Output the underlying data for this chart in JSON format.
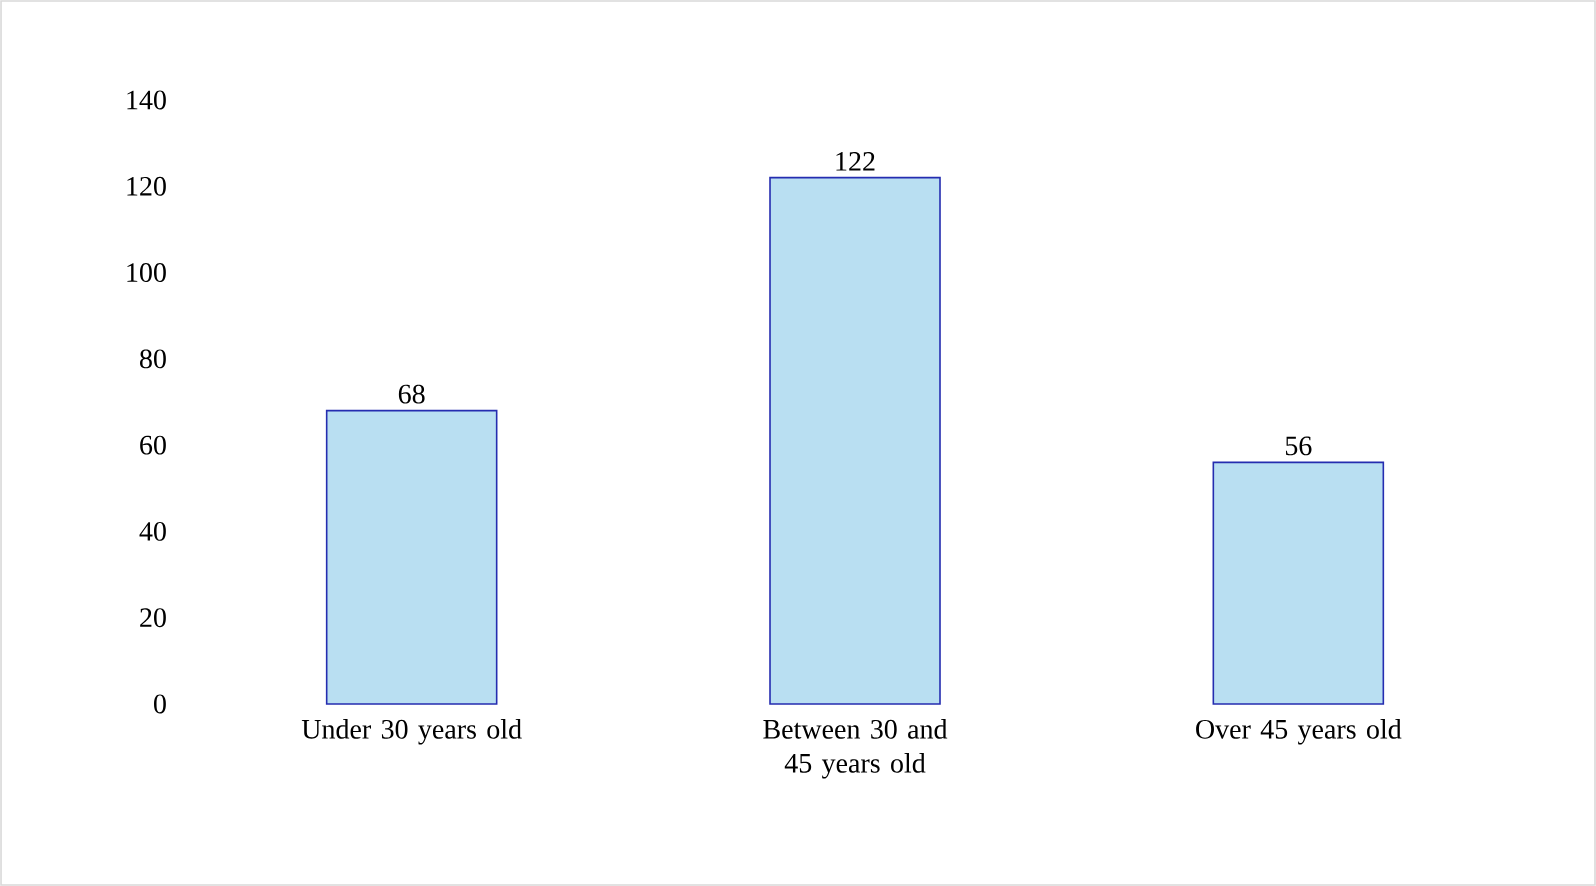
{
  "chart_data": {
    "type": "bar",
    "categories": [
      "Under 30 years old",
      "Between 30 and 45 years old",
      "Over 45 years old"
    ],
    "values": [
      68,
      122,
      56
    ],
    "color": "#b9dff2",
    "ylim": [
      0,
      140
    ],
    "yticks": [
      0,
      20,
      40,
      60,
      80,
      100,
      120,
      140
    ],
    "data_labels": true
  }
}
